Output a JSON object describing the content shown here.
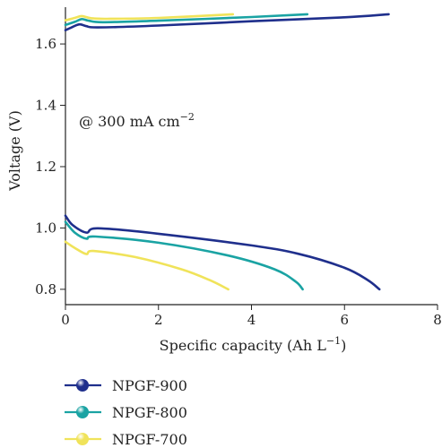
{
  "chart_data": {
    "type": "line",
    "title": "",
    "xlabel": "Specific capacity (Ah L",
    "xlabel_sup": "−1",
    "xlabel_close": ")",
    "ylabel": "Voltage (V)",
    "xlim": [
      0,
      8
    ],
    "ylim": [
      0.75,
      1.72
    ],
    "xticks": [
      0,
      2,
      4,
      6,
      8
    ],
    "yticks": [
      0.8,
      1.0,
      1.2,
      1.4,
      1.6
    ],
    "xtick_labels": [
      "0",
      "2",
      "4",
      "6",
      "8"
    ],
    "ytick_labels": [
      "0.8",
      "1.0",
      "1.2",
      "1.4",
      "1.6"
    ],
    "annotation": {
      "text": "@ 300 mA cm",
      "sup": "−2"
    },
    "grid": false,
    "legend_position": "bottom-left, below plot",
    "series": [
      {
        "name": "NPGF-900",
        "color": "#1f2f8c",
        "charge": [
          [
            0,
            1.645
          ],
          [
            0.1,
            1.652
          ],
          [
            0.3,
            1.664
          ],
          [
            0.45,
            1.658
          ],
          [
            0.7,
            1.654
          ],
          [
            2,
            1.66
          ],
          [
            4,
            1.674
          ],
          [
            6,
            1.687
          ],
          [
            6.95,
            1.697
          ]
        ],
        "discharge": [
          [
            0,
            1.04
          ],
          [
            0.15,
            1.01
          ],
          [
            0.45,
            0.985
          ],
          [
            0.7,
            0.999
          ],
          [
            2,
            0.981
          ],
          [
            4,
            0.943
          ],
          [
            5,
            0.916
          ],
          [
            6,
            0.87
          ],
          [
            6.5,
            0.83
          ],
          [
            6.75,
            0.8
          ]
        ]
      },
      {
        "name": "NPGF-800",
        "color": "#1aa3a3",
        "charge": [
          [
            0,
            1.662
          ],
          [
            0.2,
            1.672
          ],
          [
            0.35,
            1.681
          ],
          [
            0.5,
            1.676
          ],
          [
            0.8,
            1.671
          ],
          [
            2,
            1.676
          ],
          [
            4,
            1.688
          ],
          [
            5.2,
            1.697
          ]
        ],
        "discharge": [
          [
            0,
            1.02
          ],
          [
            0.2,
            0.985
          ],
          [
            0.45,
            0.965
          ],
          [
            0.65,
            0.972
          ],
          [
            2,
            0.952
          ],
          [
            3.5,
            0.91
          ],
          [
            4.5,
            0.865
          ],
          [
            4.95,
            0.825
          ],
          [
            5.1,
            0.8
          ]
        ]
      },
      {
        "name": "NPGF-700",
        "color": "#f0e35a",
        "charge": [
          [
            0,
            1.677
          ],
          [
            0.2,
            1.685
          ],
          [
            0.35,
            1.691
          ],
          [
            0.55,
            1.684
          ],
          [
            0.9,
            1.682
          ],
          [
            2,
            1.685
          ],
          [
            3.6,
            1.697
          ]
        ],
        "discharge": [
          [
            0,
            0.955
          ],
          [
            0.2,
            0.935
          ],
          [
            0.45,
            0.915
          ],
          [
            0.6,
            0.925
          ],
          [
            1.5,
            0.905
          ],
          [
            2.5,
            0.865
          ],
          [
            3.1,
            0.83
          ],
          [
            3.5,
            0.8
          ]
        ]
      }
    ]
  }
}
